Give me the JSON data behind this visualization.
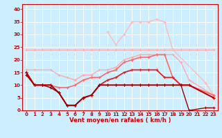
{
  "xlabel": "Vent moyen/en rafales ( km/h )",
  "bg_color": "#cceeff",
  "grid_color": "#ffffff",
  "xlim": [
    -0.5,
    23.5
  ],
  "ylim": [
    0,
    42
  ],
  "xticks": [
    0,
    1,
    2,
    3,
    4,
    5,
    6,
    7,
    8,
    9,
    10,
    11,
    12,
    13,
    14,
    15,
    16,
    17,
    18,
    19,
    20,
    21,
    22,
    23
  ],
  "yticks": [
    0,
    5,
    10,
    15,
    20,
    25,
    30,
    35,
    40
  ],
  "series": [
    {
      "x": [
        0,
        1,
        2,
        3,
        4,
        5,
        6,
        7,
        8,
        9,
        10,
        11,
        12,
        13,
        14,
        15,
        16,
        17,
        18,
        19,
        20,
        21,
        22,
        23
      ],
      "y": [
        24,
        24,
        24,
        24,
        24,
        24,
        24,
        24,
        24,
        24,
        24,
        24,
        24,
        24,
        24,
        24,
        24,
        24,
        24,
        24,
        24,
        24,
        24,
        24
      ],
      "color": "#ffaaaa",
      "lw": 1.0,
      "marker": "+"
    },
    {
      "x": [
        10,
        11,
        12,
        13,
        14,
        15,
        16,
        17,
        18,
        22,
        23
      ],
      "y": [
        31,
        26,
        30,
        35,
        35,
        35,
        36,
        35,
        24,
        11,
        6
      ],
      "color": "#ffbbbb",
      "lw": 1.0,
      "marker": "+"
    },
    {
      "x": [
        0,
        1,
        3,
        4,
        5,
        6,
        7,
        8,
        9,
        10,
        11,
        12,
        13,
        14,
        15,
        16,
        17,
        18,
        19,
        20,
        23
      ],
      "y": [
        16,
        16,
        16,
        14,
        13,
        12,
        14,
        14,
        16,
        16,
        17,
        20,
        21,
        22,
        22,
        22,
        22,
        22,
        19,
        12,
        6
      ],
      "color": "#ffaaaa",
      "lw": 1.0,
      "marker": "+"
    },
    {
      "x": [
        0,
        1,
        2,
        3,
        4,
        5,
        6,
        7,
        8,
        9,
        10,
        11,
        12,
        13,
        14,
        15,
        16,
        17,
        18,
        19,
        20,
        23
      ],
      "y": [
        15,
        10,
        10,
        10,
        9,
        9,
        10,
        12,
        13,
        13,
        15,
        16,
        19,
        20,
        21,
        21,
        22,
        22,
        13,
        10,
        10,
        6
      ],
      "color": "#ff6666",
      "lw": 1.2,
      "marker": "+"
    },
    {
      "x": [
        0,
        1,
        2,
        3,
        4,
        5,
        6,
        7,
        8,
        9,
        10,
        11,
        12,
        13,
        14,
        15,
        16,
        17,
        18,
        19,
        20,
        23
      ],
      "y": [
        15,
        10,
        10,
        10,
        7,
        2,
        2,
        5,
        6,
        10,
        12,
        13,
        15,
        16,
        16,
        16,
        16,
        13,
        13,
        10,
        10,
        5
      ],
      "color": "#dd2222",
      "lw": 1.3,
      "marker": "+"
    },
    {
      "x": [
        0,
        1,
        2,
        3,
        4,
        5,
        6,
        7,
        8,
        9,
        10,
        11,
        12,
        13,
        14,
        15,
        16,
        17,
        18,
        19,
        20,
        23
      ],
      "y": [
        15,
        10,
        10,
        10,
        7,
        2,
        2,
        5,
        6,
        10,
        10,
        10,
        10,
        10,
        10,
        10,
        10,
        10,
        10,
        10,
        10,
        5
      ],
      "color": "#bb0000",
      "lw": 1.3,
      "marker": "+"
    },
    {
      "x": [
        0,
        1,
        2,
        3,
        4,
        5,
        6,
        7,
        8,
        9,
        10,
        11,
        12,
        13,
        14,
        15,
        16,
        17,
        18,
        19,
        20,
        22,
        23
      ],
      "y": [
        14,
        10,
        10,
        9,
        7,
        2,
        2,
        5,
        6,
        10,
        10,
        10,
        10,
        10,
        10,
        10,
        10,
        10,
        10,
        10,
        0,
        1,
        1
      ],
      "color": "#990000",
      "lw": 1.0,
      "marker": "+"
    }
  ]
}
